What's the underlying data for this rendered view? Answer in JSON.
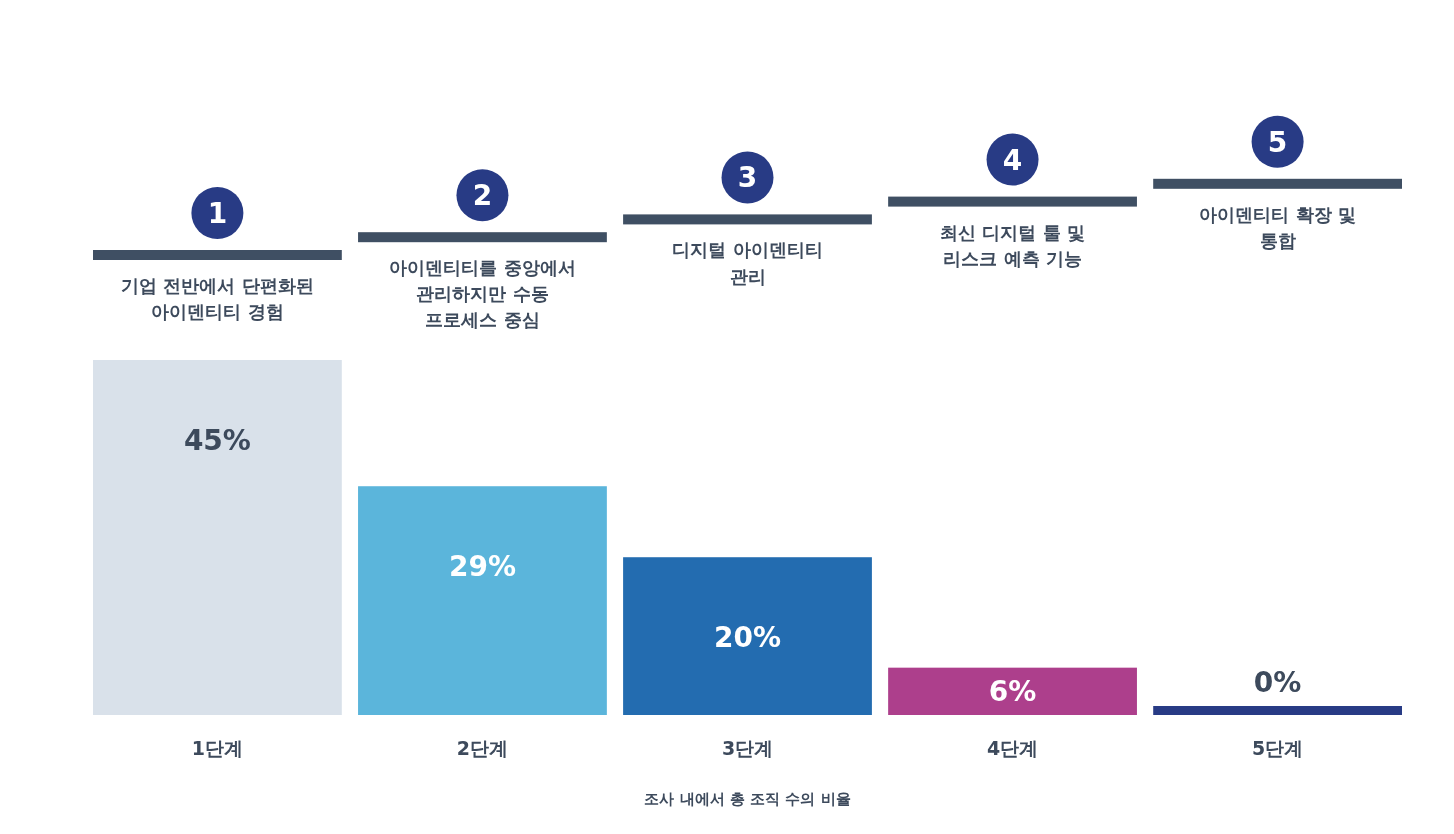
{
  "chart_data": {
    "type": "bar",
    "categories": [
      "1단계",
      "2단계",
      "3단계",
      "4단계",
      "5단계"
    ],
    "values": [
      45,
      29,
      20,
      6,
      0
    ],
    "colors": [
      "#d9e1ea",
      "#5bb5db",
      "#236cb0",
      "#ad3f8c",
      "#283b85"
    ],
    "data_labels": true,
    "value_labels": [
      "45%",
      "29%",
      "20%",
      "6%",
      "0%"
    ],
    "xlabel": "조사 내에서 총 조직 수의 비율",
    "annotations": [
      "1",
      "기업 전반에서 단편화된\n아이덴티티 경험",
      "2",
      "아이덴티티를 중앙에서\n관리하지만 수동\n프로세스 중심",
      "3",
      "디지털 아이덴티티\n관리",
      "4",
      "최신 디지털 툴 및\n리스크 예측 기능",
      "5",
      "아이덴티티 확장 및\n통합"
    ]
  }
}
